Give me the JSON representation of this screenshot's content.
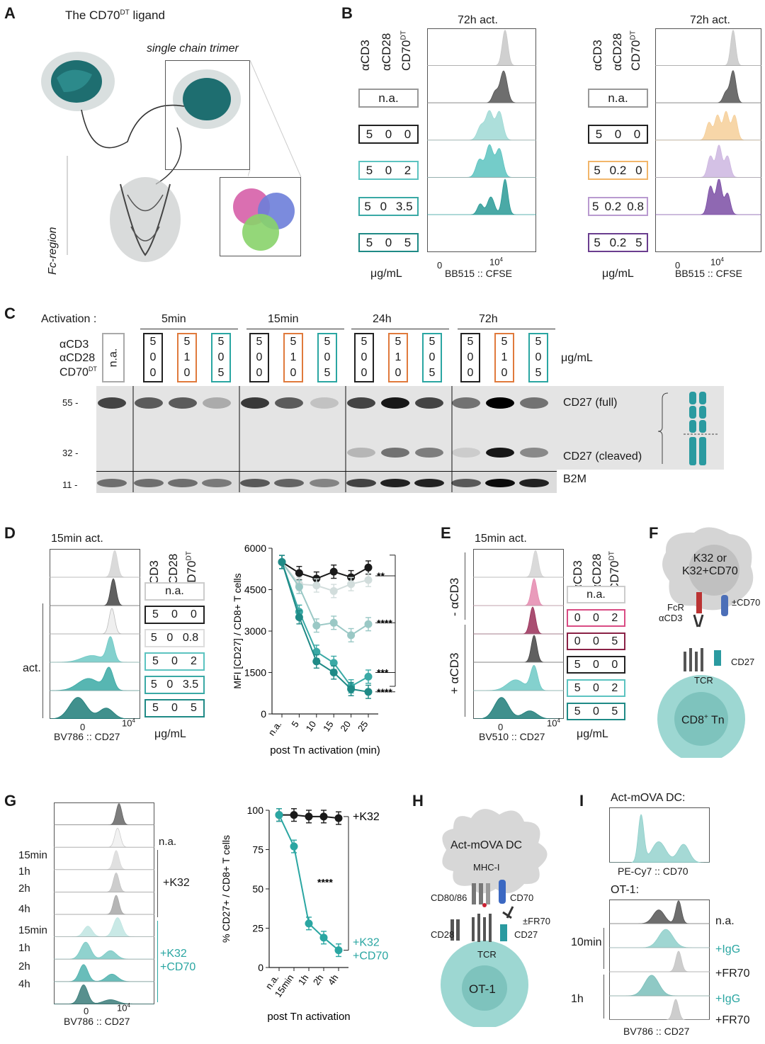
{
  "panels": {
    "A": {
      "label": "A",
      "title_main": "The CD70",
      "title_sup": "DT",
      "title_tail": " ligand",
      "trimer_label": "single chain trimer",
      "fc_label": "Fc-region"
    },
    "B": {
      "label": "B",
      "header": "72h act.",
      "col_labels": [
        "αCD3",
        "αCD28",
        "CD70"
      ],
      "col_sup": "DT",
      "left_rows": [
        {
          "text": "n.a.",
          "color": "#999999"
        },
        {
          "v1": "5",
          "v2": "0",
          "v3": "0",
          "color": "#222222"
        },
        {
          "v1": "5",
          "v2": "0",
          "v3": "2",
          "color": "#5cc3c0"
        },
        {
          "v1": "5",
          "v2": "0",
          "v3": "3.5",
          "color": "#3aa9a5"
        },
        {
          "v1": "5",
          "v2": "0",
          "v3": "5",
          "color": "#1f8a86"
        }
      ],
      "right_rows": [
        {
          "text": "n.a.",
          "color": "#999999"
        },
        {
          "v1": "5",
          "v2": "0",
          "v3": "0",
          "color": "#222222"
        },
        {
          "v1": "5",
          "v2": "0.2",
          "v3": "0",
          "color": "#f2b66a"
        },
        {
          "v1": "5",
          "v2": "0.2",
          "v3": "0.8",
          "color": "#b99ad0"
        },
        {
          "v1": "5",
          "v2": "0.2",
          "v3": "5",
          "color": "#6a3d8f"
        }
      ],
      "unit": "μg/mL",
      "axis_tick_0": "0",
      "axis_tick_4": "10",
      "axis_tick_4_sup": "4",
      "xaxis": "BB515 :: CFSE"
    },
    "C": {
      "label": "C",
      "activation_label": "Activation :",
      "timepoints": [
        "5min",
        "15min",
        "24h",
        "72h"
      ],
      "row_labels": [
        "αCD3",
        "αCD28",
        "CD70"
      ],
      "row_sup": "DT",
      "na": "n.a.",
      "unit": "μg/mL",
      "mw": [
        "55 -",
        "32 -",
        "11 -"
      ],
      "bands": [
        "CD27 (full)",
        "CD27 (cleaved)",
        "B2M"
      ],
      "lane_groups": [
        {
          "color": "#222222",
          "vals": [
            "5",
            "0",
            "0"
          ]
        },
        {
          "color": "#e07a3c",
          "vals": [
            "5",
            "1",
            "0"
          ]
        },
        {
          "color": "#2aa6a2",
          "vals": [
            "5",
            "0",
            "5"
          ]
        }
      ]
    },
    "D": {
      "label": "D",
      "header": "15min act.",
      "col_labels": [
        "αCD3",
        "αCD28",
        "CD70"
      ],
      "col_sup": "DT",
      "rows": [
        {
          "text": "n.a.",
          "color": "#cccccc"
        },
        {
          "v1": "5",
          "v2": "0",
          "v3": "0",
          "color": "#222222"
        },
        {
          "v1": "5",
          "v2": "0",
          "v3": "0.8",
          "color": "#dddddd"
        },
        {
          "v1": "5",
          "v2": "0",
          "v3": "2",
          "color": "#5cc3c0"
        },
        {
          "v1": "5",
          "v2": "0",
          "v3": "3.5",
          "color": "#3aa9a5"
        },
        {
          "v1": "5",
          "v2": "0",
          "v3": "5",
          "color": "#1f8a86"
        }
      ],
      "act_label": "act.",
      "unit": "μg/mL",
      "xaxis": "BV786 :: CD27",
      "tick_0": "0",
      "tick_4": "10",
      "tick_4_sup": "4"
    },
    "E": {
      "label": "E",
      "header": "15min act.",
      "col_labels": [
        "αCD3",
        "αCD28",
        "CD70"
      ],
      "col_sup": "DT",
      "minus_label": "- αCD3",
      "plus_label": "+ αCD3",
      "rows": [
        {
          "text": "n.a.",
          "color": "#cccccc"
        },
        {
          "v1": "0",
          "v2": "0",
          "v3": "2",
          "color": "#d94c84"
        },
        {
          "v1": "0",
          "v2": "0",
          "v3": "5",
          "color": "#8a2246"
        },
        {
          "v1": "5",
          "v2": "0",
          "v3": "0",
          "color": "#222222"
        },
        {
          "v1": "5",
          "v2": "0",
          "v3": "2",
          "color": "#5cc3c0"
        },
        {
          "v1": "5",
          "v2": "0",
          "v3": "5",
          "color": "#1f8a86"
        }
      ],
      "unit": "μg/mL",
      "xaxis": "BV510 :: CD27",
      "tick_0": "0",
      "tick_4": "10",
      "tick_4_sup": "4"
    },
    "F": {
      "label": "F",
      "cell_top": "K32 or\nK32+CD70",
      "fcr": "FcR",
      "acd3": "αCD3",
      "pm_cd70": "±CD70",
      "cd27": "CD27",
      "tcr": "TCR",
      "tn": "CD8",
      "tn_sup": "+",
      "tn_tail": " Tn"
    },
    "G": {
      "label": "G",
      "row_labels": [
        "n.a.",
        "15min",
        "1h",
        "2h",
        "4h",
        "15min",
        "1h",
        "2h",
        "4h"
      ],
      "group1": "+K32",
      "group2_l1": "+K32",
      "group2_l2": "+CD70",
      "xaxis": "BV786 :: CD27",
      "tick_0": "0",
      "tick_4": "10",
      "tick_4_sup": "4",
      "k32": "+K32",
      "k32cd70_l1": "+K32",
      "k32cd70_l2": "+CD70",
      "sig": "****"
    },
    "H": {
      "label": "H",
      "dc": "Act-mOVA DC",
      "mhc": "MHC-I",
      "cd8086": "CD80/86",
      "cd70": "CD70",
      "fr70": "±FR70",
      "cd28": "CD28",
      "tcr": "TCR",
      "cd27": "CD27",
      "ot1": "OT-1"
    },
    "I": {
      "label": "I",
      "dc_title": "Act-mOVA DC:",
      "dc_xaxis": "PE-Cy7 :: CD70",
      "ot1_title": "OT-1:",
      "rows": [
        "n.a.",
        "+IgG",
        "+FR70",
        "+IgG",
        "+FR70"
      ],
      "time1": "10min",
      "time2": "1h",
      "xaxis": "BV786 :: CD27"
    }
  },
  "chart_data": [
    {
      "type": "line",
      "panel": "D",
      "title": "",
      "xlabel": "post Tn activation (min)",
      "ylabel": "MFI [CD27] / CD8+ T cells",
      "categories": [
        "n.a.",
        "5",
        "10",
        "15",
        "20",
        "25"
      ],
      "ylim": [
        0,
        6000
      ],
      "yticks": [
        0,
        1500,
        3000,
        4500,
        6000
      ],
      "series": [
        {
          "values": [
            5500,
            5100,
            4900,
            5150,
            4950,
            5300
          ],
          "color": "#1a1a1a",
          "sig": ""
        },
        {
          "values": [
            5500,
            4700,
            4650,
            4450,
            4700,
            4850
          ],
          "color": "#d2dddc",
          "sig": "**"
        },
        {
          "values": [
            5500,
            4600,
            3200,
            3300,
            2850,
            3250
          ],
          "color": "#9ac8c5",
          "sig": "****"
        },
        {
          "values": [
            5500,
            3700,
            2250,
            1850,
            1000,
            1350
          ],
          "color": "#3aa9a5",
          "sig": "***"
        },
        {
          "values": [
            5500,
            3500,
            1900,
            1500,
            900,
            800
          ],
          "color": "#1f8a86",
          "sig": "****"
        }
      ]
    },
    {
      "type": "line",
      "panel": "G",
      "title": "",
      "xlabel": "post Tn activation",
      "ylabel": "% CD27+ / CD8+ T cells",
      "categories": [
        "n.a.",
        "15min",
        "1h",
        "2h",
        "4h"
      ],
      "ylim": [
        0,
        100
      ],
      "yticks": [
        0,
        25,
        50,
        75,
        100
      ],
      "series": [
        {
          "name": "+K32",
          "values": [
            97,
            97,
            96,
            96,
            95
          ],
          "color": "#1a1a1a"
        },
        {
          "name": "+K32 +CD70",
          "values": [
            97,
            77,
            28,
            19,
            11
          ],
          "color": "#2aa6a2"
        }
      ]
    }
  ]
}
